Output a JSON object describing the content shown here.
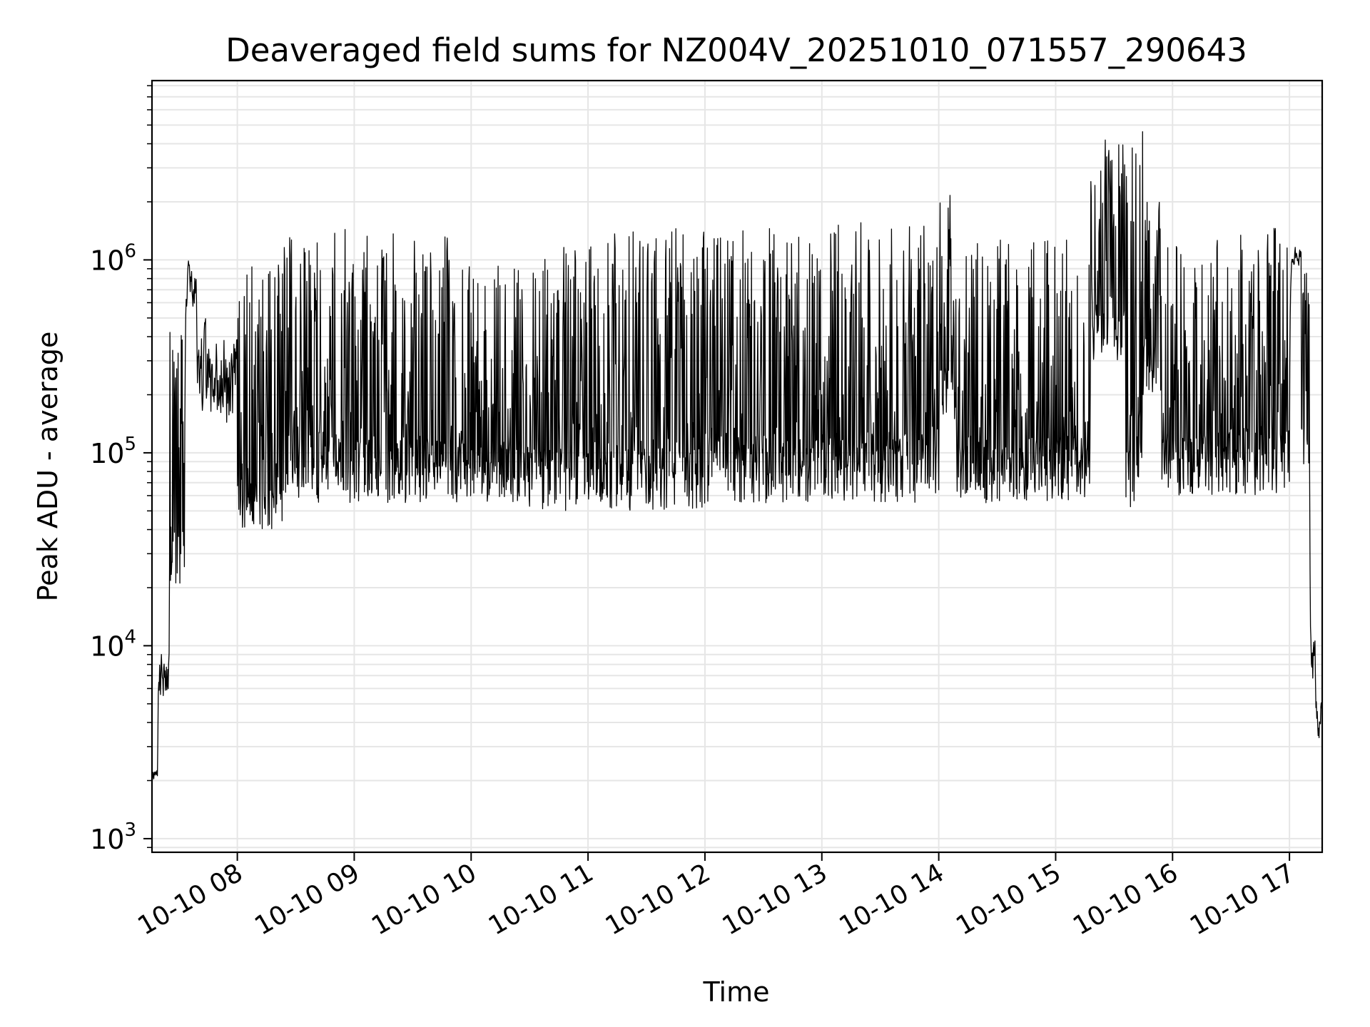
{
  "chart_data": {
    "type": "line",
    "title": "Deaveraged field sums for NZ004V_20251010_071557_290643",
    "xlabel": "Time",
    "ylabel": "Peak ADU - average",
    "yscale": "log",
    "ylim": [
      850,
      8500000
    ],
    "xlim_hours": [
      7.27,
      17.28
    ],
    "grid": true,
    "line_color": "#000000",
    "grid_color": "#e6e6e6",
    "x_ticks": [
      {
        "hour": 8,
        "label": "10-10 08"
      },
      {
        "hour": 9,
        "label": "10-10 09"
      },
      {
        "hour": 10,
        "label": "10-10 10"
      },
      {
        "hour": 11,
        "label": "10-10 11"
      },
      {
        "hour": 12,
        "label": "10-10 12"
      },
      {
        "hour": 13,
        "label": "10-10 13"
      },
      {
        "hour": 14,
        "label": "10-10 14"
      },
      {
        "hour": 15,
        "label": "10-10 15"
      },
      {
        "hour": 16,
        "label": "10-10 16"
      },
      {
        "hour": 17,
        "label": "10-10 17"
      }
    ],
    "y_ticks": [
      {
        "value": 1000,
        "base": "10",
        "exp": "3"
      },
      {
        "value": 10000,
        "base": "10",
        "exp": "4"
      },
      {
        "value": 100000,
        "base": "10",
        "exp": "5"
      },
      {
        "value": 1000000,
        "base": "10",
        "exp": "6"
      }
    ],
    "segments": [
      {
        "start": 7.27,
        "end": 7.32,
        "low": 1800,
        "high": 2500
      },
      {
        "start": 7.32,
        "end": 7.42,
        "low": 4500,
        "high": 11000
      },
      {
        "start": 7.42,
        "end": 7.55,
        "low": 20000,
        "high": 450000
      },
      {
        "start": 7.55,
        "end": 7.65,
        "low": 500000,
        "high": 1100000
      },
      {
        "start": 7.65,
        "end": 8.0,
        "low": 90000,
        "high": 600000
      },
      {
        "start": 8.0,
        "end": 8.4,
        "low": 40000,
        "high": 950000
      },
      {
        "start": 8.4,
        "end": 9.25,
        "low": 55000,
        "high": 1450000
      },
      {
        "start": 9.25,
        "end": 10.0,
        "low": 55000,
        "high": 1400000
      },
      {
        "start": 10.0,
        "end": 10.5,
        "low": 55000,
        "high": 1100000
      },
      {
        "start": 10.5,
        "end": 11.0,
        "low": 50000,
        "high": 1300000
      },
      {
        "start": 11.0,
        "end": 12.0,
        "low": 50000,
        "high": 1500000
      },
      {
        "start": 12.0,
        "end": 13.0,
        "low": 55000,
        "high": 1550000
      },
      {
        "start": 13.0,
        "end": 14.0,
        "low": 55000,
        "high": 1600000
      },
      {
        "start": 14.0,
        "end": 14.15,
        "low": 150000,
        "high": 2200000
      },
      {
        "start": 14.15,
        "end": 15.3,
        "low": 55000,
        "high": 1300000
      },
      {
        "start": 15.3,
        "end": 15.6,
        "low": 300000,
        "high": 4200000
      },
      {
        "start": 15.6,
        "end": 15.75,
        "low": 50000,
        "high": 5500000
      },
      {
        "start": 15.75,
        "end": 15.9,
        "low": 200000,
        "high": 2000000
      },
      {
        "start": 15.9,
        "end": 16.2,
        "low": 60000,
        "high": 1300000
      },
      {
        "start": 16.2,
        "end": 17.0,
        "low": 60000,
        "high": 1500000
      },
      {
        "start": 17.0,
        "end": 17.1,
        "low": 900000,
        "high": 1250000
      },
      {
        "start": 17.1,
        "end": 17.17,
        "low": 80000,
        "high": 900000
      },
      {
        "start": 17.17,
        "end": 17.22,
        "low": 5000,
        "high": 15000
      },
      {
        "start": 17.22,
        "end": 17.28,
        "low": 2800,
        "high": 6000
      }
    ]
  }
}
